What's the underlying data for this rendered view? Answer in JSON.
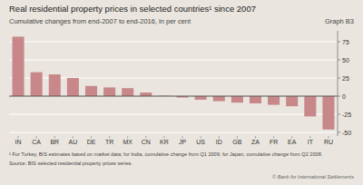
{
  "chart_data": {
    "type": "bar",
    "title": "Real residential property prices in selected countries¹ since 2007",
    "subtitle": "Cumulative changes from end-2007 to end-2016, in per cent",
    "annotations": [
      "Graph B3",
      "¹ For Turkey, BIS estimates based on market data; for India, cumulative change from Q1 2009; for Japan, cumulative change from Q2 2008.",
      "Source: BIS selected residential property prices series.",
      "© Bank for International Settlements"
    ],
    "categories": [
      "IN",
      "CA",
      "BR",
      "AU",
      "DE",
      "TR",
      "MX",
      "CN",
      "KR",
      "JP",
      "US",
      "ID",
      "GB",
      "ZA",
      "FR",
      "EA",
      "IT",
      "RU"
    ],
    "values": [
      82,
      33,
      30,
      25,
      14,
      12,
      11,
      5,
      0.5,
      -2,
      -5,
      -7,
      -9,
      -10,
      -12,
      -14,
      -28,
      -46
    ],
    "color": "#c8888a",
    "ylim": [
      -55,
      90
    ],
    "yticks": [
      -50,
      -25,
      0,
      25,
      50,
      75
    ],
    "grid": true
  }
}
